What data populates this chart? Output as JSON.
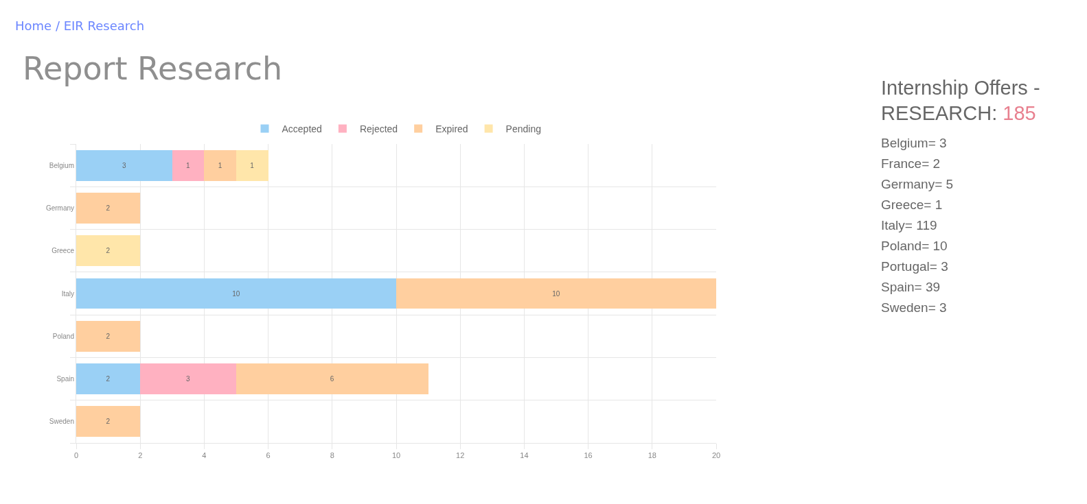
{
  "chart_data": [
    {
      "type": "bar",
      "orientation": "horizontal",
      "stacked": true,
      "title": "Report Research",
      "annotations": [
        "Home / EIR Research"
      ],
      "categories": [
        "Belgium",
        "Germany",
        "Greece",
        "Italy",
        "Poland",
        "Spain",
        "Sweden"
      ],
      "series": [
        {
          "name": "Accepted",
          "color": "#9ad0f5",
          "values": [
            3,
            null,
            null,
            10,
            null,
            2,
            null
          ]
        },
        {
          "name": "Rejected",
          "color": "#ffb1c1",
          "values": [
            1,
            null,
            null,
            null,
            null,
            3,
            null
          ]
        },
        {
          "name": "Expired",
          "color": "#ffcf9f",
          "values": [
            1,
            2,
            null,
            10,
            2,
            6,
            2
          ]
        },
        {
          "name": "Pending",
          "color": "#ffe6aa",
          "values": [
            1,
            null,
            2,
            null,
            null,
            null,
            null
          ]
        }
      ],
      "xlim": [
        0,
        20
      ],
      "xticks": [
        0,
        2,
        4,
        6,
        8,
        10,
        12,
        14,
        16,
        18,
        20
      ],
      "grid": true,
      "legend": "top",
      "data_labels": true
    },
    {
      "type": "other",
      "title": "Internship Offers - RESEARCH: 185",
      "annotations": [
        "Belgium= 3",
        "France= 2",
        "Germany= 5",
        "Greece= 1",
        "Italy= 119",
        "Poland= 10",
        "Portugal= 3",
        "Spain= 39",
        "Sweden= 3"
      ]
    }
  ]
}
